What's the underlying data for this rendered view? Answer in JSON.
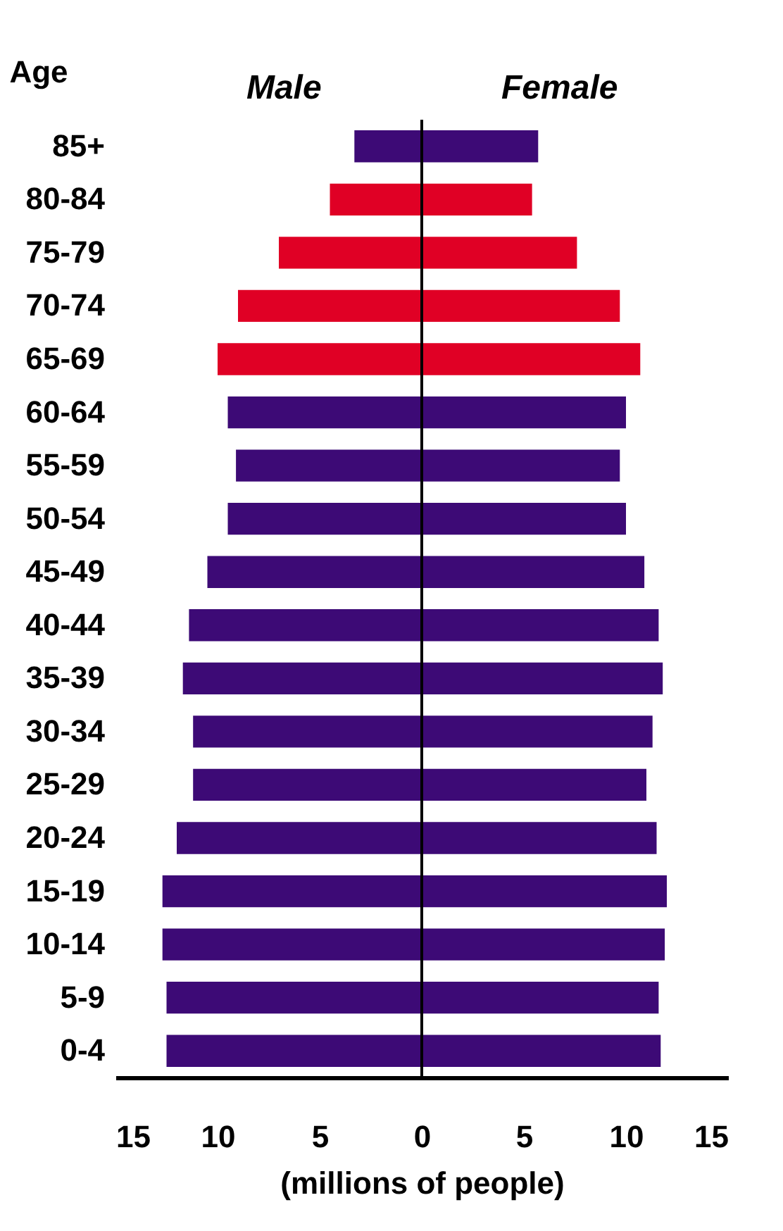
{
  "chart_data": {
    "type": "bar",
    "orientation": "horizontal",
    "ylabel": "Age",
    "xlabel": "(millions of people)",
    "categories": [
      "85+",
      "80-84",
      "75-79",
      "70-74",
      "65-69",
      "60-64",
      "55-59",
      "50-54",
      "45-49",
      "40-44",
      "35-39",
      "30-34",
      "25-29",
      "20-24",
      "15-19",
      "10-14",
      "5-9",
      "0-4"
    ],
    "series": [
      {
        "name": "Male",
        "colors": [
          "#3d0a76",
          "#e00025",
          "#e00025",
          "#e00025",
          "#e00025",
          "#3d0a76",
          "#3d0a76",
          "#3d0a76",
          "#3d0a76",
          "#3d0a76",
          "#3d0a76",
          "#3d0a76",
          "#3d0a76",
          "#3d0a76",
          "#3d0a76",
          "#3d0a76",
          "#3d0a76",
          "#3d0a76"
        ],
        "values": [
          -3.3,
          -4.5,
          -7.0,
          -9.0,
          -10.0,
          -9.5,
          -9.1,
          -9.5,
          -10.5,
          -11.4,
          -11.7,
          -11.2,
          -11.2,
          -12.0,
          -12.7,
          -12.7,
          -12.5,
          -12.5
        ]
      },
      {
        "name": "Female",
        "colors": [
          "#3d0a76",
          "#e00025",
          "#e00025",
          "#e00025",
          "#e00025",
          "#3d0a76",
          "#3d0a76",
          "#3d0a76",
          "#3d0a76",
          "#3d0a76",
          "#3d0a76",
          "#3d0a76",
          "#3d0a76",
          "#3d0a76",
          "#3d0a76",
          "#3d0a76",
          "#3d0a76",
          "#3d0a76"
        ],
        "values": [
          5.7,
          5.4,
          7.6,
          9.7,
          10.7,
          10.0,
          9.7,
          10.0,
          10.9,
          11.6,
          11.8,
          11.3,
          11.0,
          11.5,
          12.0,
          11.9,
          11.6,
          11.7
        ]
      }
    ],
    "xlim": [
      -15,
      15
    ],
    "xticks": [
      {
        "value": -15,
        "label": "15"
      },
      {
        "value": -10,
        "label": "10"
      },
      {
        "value": -5,
        "label": "5"
      },
      0,
      5,
      10,
      15
    ],
    "ref_lines": [
      {
        "axis": "x",
        "value": 0,
        "color": "#000000"
      }
    ],
    "stacked": true,
    "grid": false
  }
}
